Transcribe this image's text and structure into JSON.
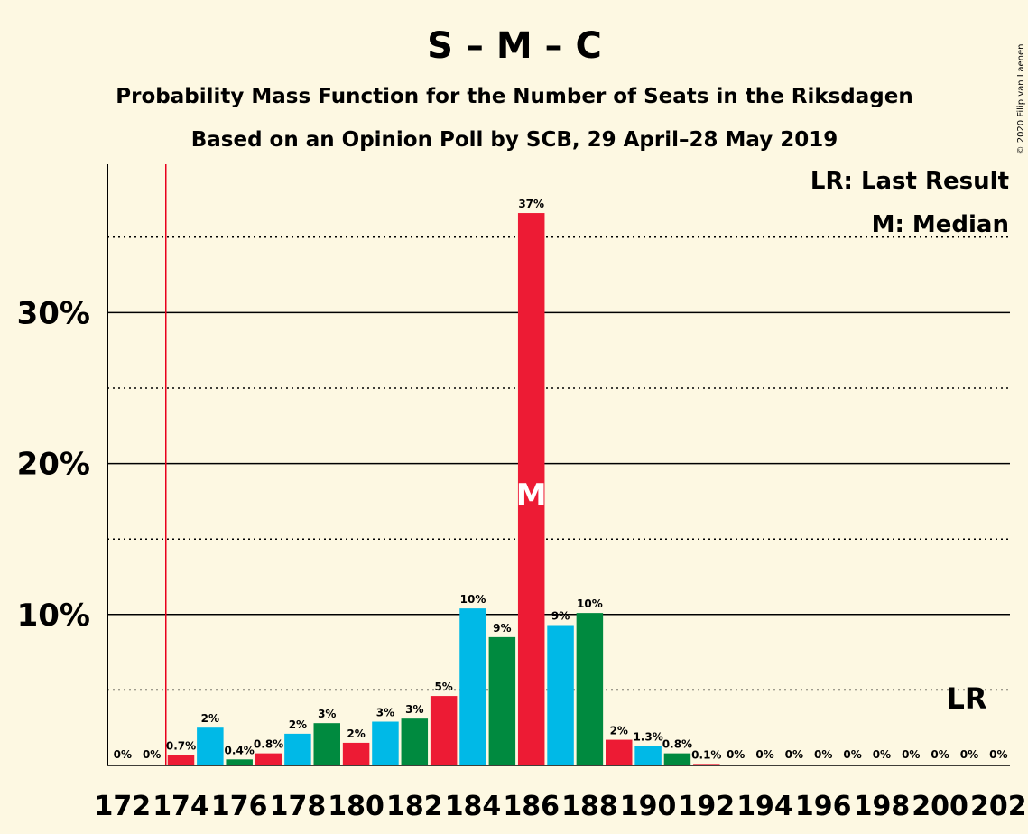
{
  "chart_data": {
    "type": "bar",
    "title": "S – M – C",
    "subtitle": "Probability Mass Function for the Number of Seats in the Riksdagen",
    "subtitle2": "Based on an Opinion Poll by SCB, 29 April–28 May 2019",
    "copyright": "© 2020 Filip van Laenen",
    "legend": [
      "LR: Last Result",
      "M: Median"
    ],
    "legend_position": "top-right",
    "median_marker": "M",
    "last_result_marker": "LR",
    "last_result_seat": 174,
    "median_seat": 186,
    "ylim": [
      0,
      40
    ],
    "yticks": [
      {
        "value": 10,
        "label": "10%"
      },
      {
        "value": 20,
        "label": "20%"
      },
      {
        "value": 30,
        "label": "30%"
      }
    ],
    "minor_gridlines": [
      5,
      15,
      25,
      35
    ],
    "xtick_labels": [
      "172",
      "174",
      "176",
      "178",
      "180",
      "182",
      "184",
      "186",
      "188",
      "190",
      "192",
      "194",
      "196",
      "198",
      "200",
      "202"
    ],
    "series_colors": [
      "#ED1B34",
      "#00B9E7",
      "#008A3F"
    ],
    "bars": [
      {
        "seat": 172,
        "value": 0,
        "label": "0%"
      },
      {
        "seat": 173,
        "value": 0,
        "label": "0%"
      },
      {
        "seat": 174,
        "value": 0.7,
        "label": "0.7%"
      },
      {
        "seat": 175,
        "value": 2.5,
        "label": "2%"
      },
      {
        "seat": 176,
        "value": 0.4,
        "label": "0.4%"
      },
      {
        "seat": 177,
        "value": 0.8,
        "label": "0.8%"
      },
      {
        "seat": 178,
        "value": 2.1,
        "label": "2%"
      },
      {
        "seat": 179,
        "value": 2.8,
        "label": "3%"
      },
      {
        "seat": 180,
        "value": 1.5,
        "label": "2%"
      },
      {
        "seat": 181,
        "value": 2.9,
        "label": "3%"
      },
      {
        "seat": 182,
        "value": 3.1,
        "label": "3%"
      },
      {
        "seat": 183,
        "value": 4.6,
        "label": "5%"
      },
      {
        "seat": 184,
        "value": 10.4,
        "label": "10%"
      },
      {
        "seat": 185,
        "value": 8.5,
        "label": "9%"
      },
      {
        "seat": 186,
        "value": 36.6,
        "label": "37%"
      },
      {
        "seat": 187,
        "value": 9.3,
        "label": "9%"
      },
      {
        "seat": 188,
        "value": 10.1,
        "label": "10%"
      },
      {
        "seat": 189,
        "value": 1.7,
        "label": "2%"
      },
      {
        "seat": 190,
        "value": 1.3,
        "label": "1.3%"
      },
      {
        "seat": 191,
        "value": 0.8,
        "label": "0.8%"
      },
      {
        "seat": 192,
        "value": 0.1,
        "label": "0.1%"
      },
      {
        "seat": 193,
        "value": 0,
        "label": "0%"
      },
      {
        "seat": 194,
        "value": 0,
        "label": "0%"
      },
      {
        "seat": 195,
        "value": 0,
        "label": "0%"
      },
      {
        "seat": 196,
        "value": 0,
        "label": "0%"
      },
      {
        "seat": 197,
        "value": 0,
        "label": "0%"
      },
      {
        "seat": 198,
        "value": 0,
        "label": "0%"
      },
      {
        "seat": 199,
        "value": 0,
        "label": "0%"
      },
      {
        "seat": 200,
        "value": 0,
        "label": "0%"
      },
      {
        "seat": 201,
        "value": 0,
        "label": "0%"
      },
      {
        "seat": 202,
        "value": 0,
        "label": "0%"
      }
    ]
  }
}
